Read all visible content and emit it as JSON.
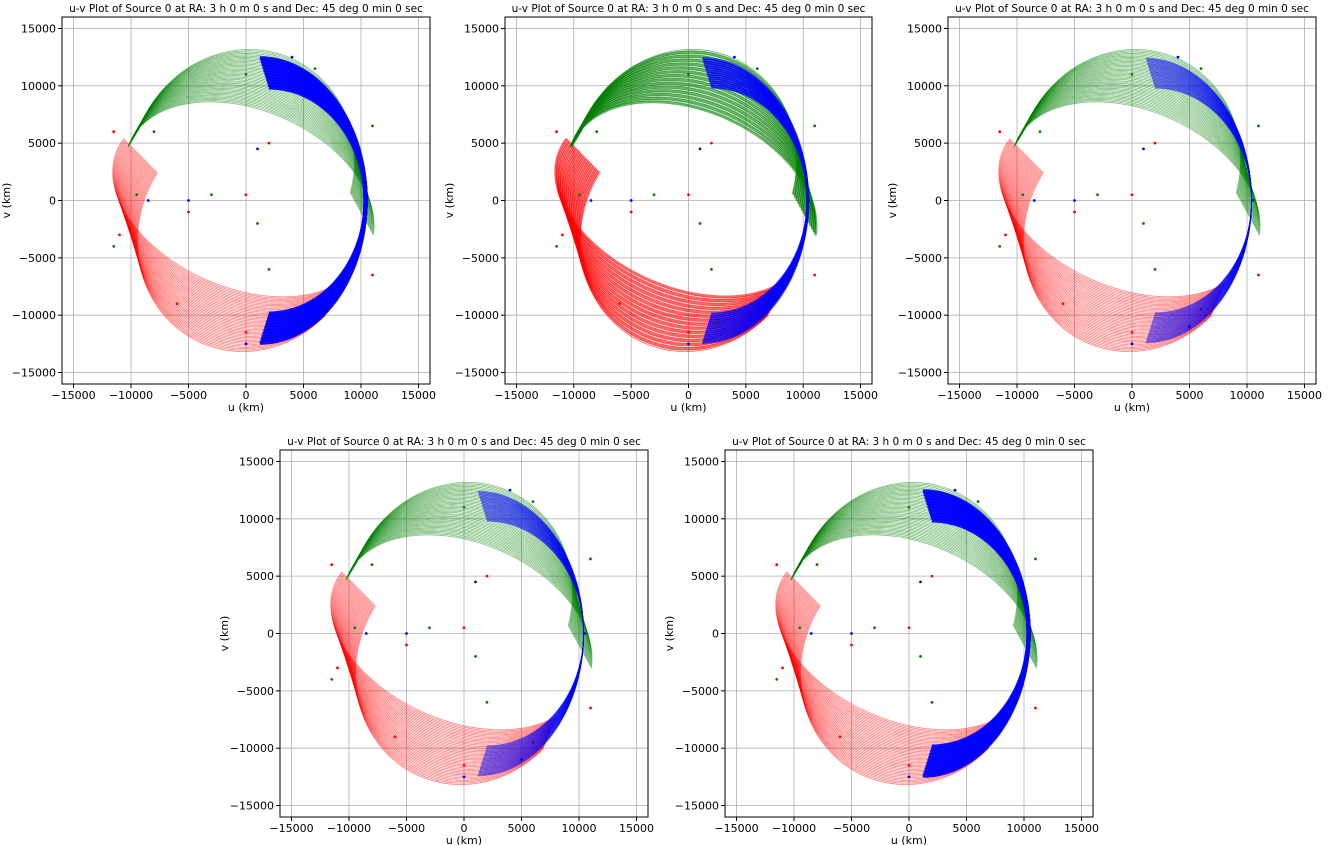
{
  "chart_data": [
    {
      "type": "scatter",
      "title": "u-v Plot of Source 0 at RA: 3 h 0 m 0 s and Dec: 45 deg 0 min 0 sec",
      "xlabel": "u (km)",
      "ylabel": "v (km)",
      "xlim": [
        -16000,
        16000
      ],
      "ylim": [
        -16000,
        16000
      ],
      "xticks": [
        -15000,
        -10000,
        -5000,
        0,
        5000,
        10000,
        15000
      ],
      "yticks": [
        -15000,
        -10000,
        -5000,
        0,
        5000,
        10000,
        15000
      ],
      "xtick_labels": [
        "−15000",
        "−10000",
        "−5000",
        "0",
        "5000",
        "10000",
        "15000"
      ],
      "ytick_labels": [
        "−15000",
        "−10000",
        "−5000",
        "0",
        "5000",
        "10000",
        "15000"
      ],
      "grid": true,
      "series_colors": [
        "#ff0000",
        "#008000",
        "#0000ff"
      ],
      "pattern": "blue-bands",
      "series": [
        {
          "color": "#ff0000",
          "values": [
            [
              -11000,
              -3000
            ],
            [
              -6000,
              -9000
            ],
            [
              0,
              -11500
            ],
            [
              6000,
              -9500
            ],
            [
              11000,
              -6500
            ],
            [
              -11500,
              6000
            ],
            [
              -5000,
              -1000
            ],
            [
              0,
              500
            ],
            [
              2000,
              5000
            ]
          ]
        },
        {
          "color": "#008000",
          "values": [
            [
              -11500,
              -4000
            ],
            [
              -8000,
              6000
            ],
            [
              0,
              11000
            ],
            [
              6000,
              11500
            ],
            [
              11000,
              6500
            ],
            [
              -9500,
              500
            ],
            [
              -3000,
              500
            ],
            [
              1000,
              -2000
            ],
            [
              2000,
              -6000
            ]
          ]
        },
        {
          "color": "#0000ff",
          "values": [
            [
              0,
              -12500
            ],
            [
              5000,
              -11000
            ],
            [
              9000,
              -6000
            ],
            [
              10500,
              0
            ],
            [
              9000,
              6000
            ],
            [
              4000,
              12500
            ],
            [
              1000,
              4500
            ],
            [
              -5000,
              0
            ],
            [
              -8500,
              0
            ]
          ]
        }
      ]
    },
    {
      "type": "scatter",
      "title": "u-v Plot of Source 0 at RA: 3 h 0 m 0 s and Dec: 45 deg 0 min 0 sec",
      "xlabel": "u (km)",
      "ylabel": "v (km)",
      "xlim": [
        -16000,
        16000
      ],
      "ylim": [
        -16000,
        16000
      ],
      "xticks": [
        -15000,
        -10000,
        -5000,
        0,
        5000,
        10000,
        15000
      ],
      "yticks": [
        -15000,
        -10000,
        -5000,
        0,
        5000,
        10000,
        15000
      ],
      "xtick_labels": [
        "−15000",
        "−10000",
        "−5000",
        "0",
        "5000",
        "10000",
        "15000"
      ],
      "ytick_labels": [
        "−15000",
        "−10000",
        "−5000",
        "0",
        "5000",
        "10000",
        "15000"
      ],
      "grid": true,
      "series_colors": [
        "#ff0000",
        "#008000",
        "#0000ff"
      ],
      "pattern": "all-bands",
      "series": [
        {
          "color": "#ff0000",
          "values": [
            [
              -11000,
              -3000
            ],
            [
              -6000,
              -9000
            ],
            [
              0,
              -11500
            ],
            [
              6000,
              -9500
            ],
            [
              11000,
              -6500
            ],
            [
              -11500,
              6000
            ],
            [
              -5000,
              -1000
            ],
            [
              0,
              500
            ],
            [
              2000,
              5000
            ]
          ]
        },
        {
          "color": "#008000",
          "values": [
            [
              -11500,
              -4000
            ],
            [
              -8000,
              6000
            ],
            [
              0,
              11000
            ],
            [
              6000,
              11500
            ],
            [
              11000,
              6500
            ],
            [
              -9500,
              500
            ],
            [
              -3000,
              500
            ],
            [
              1000,
              -2000
            ],
            [
              2000,
              -6000
            ]
          ]
        },
        {
          "color": "#0000ff",
          "values": [
            [
              0,
              -12500
            ],
            [
              5000,
              -11000
            ],
            [
              9000,
              -6000
            ],
            [
              10500,
              0
            ],
            [
              9000,
              6000
            ],
            [
              4000,
              12500
            ],
            [
              1000,
              4500
            ],
            [
              -5000,
              0
            ],
            [
              -8500,
              0
            ]
          ]
        }
      ]
    },
    {
      "type": "scatter",
      "title": "u-v Plot of Source 0 at RA: 3 h 0 m 0 s and Dec: 45 deg 0 min 0 sec",
      "xlabel": "u (km)",
      "ylabel": "v (km)",
      "xlim": [
        -16000,
        16000
      ],
      "ylim": [
        -16000,
        16000
      ],
      "xticks": [
        -15000,
        -10000,
        -5000,
        0,
        5000,
        10000,
        15000
      ],
      "yticks": [
        -15000,
        -10000,
        -5000,
        0,
        5000,
        10000,
        15000
      ],
      "xtick_labels": [
        "−15000",
        "−10000",
        "−5000",
        "0",
        "5000",
        "10000",
        "15000"
      ],
      "ytick_labels": [
        "−15000",
        "−10000",
        "−5000",
        "0",
        "5000",
        "10000",
        "15000"
      ],
      "grid": true,
      "series_colors": [
        "#ff0000",
        "#008000",
        "#0000ff"
      ],
      "pattern": "all-dense",
      "series": [
        {
          "color": "#ff0000",
          "values": [
            [
              -11000,
              -3000
            ],
            [
              -6000,
              -9000
            ],
            [
              0,
              -11500
            ],
            [
              6000,
              -9500
            ],
            [
              11000,
              -6500
            ],
            [
              -11500,
              6000
            ],
            [
              -5000,
              -1000
            ],
            [
              0,
              500
            ],
            [
              2000,
              5000
            ]
          ]
        },
        {
          "color": "#008000",
          "values": [
            [
              -11500,
              -4000
            ],
            [
              -8000,
              6000
            ],
            [
              0,
              11000
            ],
            [
              6000,
              11500
            ],
            [
              11000,
              6500
            ],
            [
              -9500,
              500
            ],
            [
              -3000,
              500
            ],
            [
              1000,
              -2000
            ],
            [
              2000,
              -6000
            ]
          ]
        },
        {
          "color": "#0000ff",
          "values": [
            [
              0,
              -12500
            ],
            [
              5000,
              -11000
            ],
            [
              9000,
              -6000
            ],
            [
              10500,
              0
            ],
            [
              9000,
              6000
            ],
            [
              4000,
              12500
            ],
            [
              1000,
              4500
            ],
            [
              -5000,
              0
            ],
            [
              -8500,
              0
            ]
          ]
        }
      ]
    },
    {
      "type": "scatter",
      "title": "u-v Plot of Source 0 at RA: 3 h 0 m 0 s and Dec: 45 deg 0 min 0 sec",
      "xlabel": "u (km)",
      "ylabel": "v (km)",
      "xlim": [
        -16000,
        16000
      ],
      "ylim": [
        -16000,
        16000
      ],
      "xticks": [
        -15000,
        -10000,
        -5000,
        0,
        5000,
        10000,
        15000
      ],
      "yticks": [
        -15000,
        -10000,
        -5000,
        0,
        5000,
        10000,
        15000
      ],
      "xtick_labels": [
        "−15000",
        "−10000",
        "−5000",
        "0",
        "5000",
        "10000",
        "15000"
      ],
      "ytick_labels": [
        "−15000",
        "−10000",
        "−5000",
        "0",
        "5000",
        "10000",
        "15000"
      ],
      "grid": true,
      "series_colors": [
        "#ff0000",
        "#008000",
        "#0000ff"
      ],
      "pattern": "all-dense",
      "series": [
        {
          "color": "#ff0000",
          "values": [
            [
              -11000,
              -3000
            ],
            [
              -6000,
              -9000
            ],
            [
              0,
              -11500
            ],
            [
              6000,
              -9500
            ],
            [
              11000,
              -6500
            ],
            [
              -11500,
              6000
            ],
            [
              -5000,
              -1000
            ],
            [
              0,
              500
            ],
            [
              2000,
              5000
            ]
          ]
        },
        {
          "color": "#008000",
          "values": [
            [
              -11500,
              -4000
            ],
            [
              -8000,
              6000
            ],
            [
              0,
              11000
            ],
            [
              6000,
              11500
            ],
            [
              11000,
              6500
            ],
            [
              -9500,
              500
            ],
            [
              -3000,
              500
            ],
            [
              1000,
              -2000
            ],
            [
              2000,
              -6000
            ]
          ]
        },
        {
          "color": "#0000ff",
          "values": [
            [
              0,
              -12500
            ],
            [
              5000,
              -11000
            ],
            [
              9000,
              -6000
            ],
            [
              10500,
              0
            ],
            [
              9000,
              6000
            ],
            [
              4000,
              12500
            ],
            [
              1000,
              4500
            ],
            [
              -5000,
              0
            ],
            [
              -8500,
              0
            ]
          ]
        }
      ]
    },
    {
      "type": "scatter",
      "title": "u-v Plot of Source 0 at RA: 3 h 0 m 0 s and Dec: 45 deg 0 min 0 sec",
      "xlabel": "u (km)",
      "ylabel": "v (km)",
      "xlim": [
        -16000,
        16000
      ],
      "ylim": [
        -16000,
        16000
      ],
      "xticks": [
        -15000,
        -10000,
        -5000,
        0,
        5000,
        10000,
        15000
      ],
      "yticks": [
        -15000,
        -10000,
        -5000,
        0,
        5000,
        10000,
        15000
      ],
      "xtick_labels": [
        "−15000",
        "−10000",
        "−5000",
        "0",
        "5000",
        "10000",
        "15000"
      ],
      "ytick_labels": [
        "−15000",
        "−10000",
        "−5000",
        "0",
        "5000",
        "10000",
        "15000"
      ],
      "grid": true,
      "series_colors": [
        "#ff0000",
        "#008000",
        "#0000ff"
      ],
      "pattern": "blue-bands",
      "series": [
        {
          "color": "#ff0000",
          "values": [
            [
              -11000,
              -3000
            ],
            [
              -6000,
              -9000
            ],
            [
              0,
              -11500
            ],
            [
              6000,
              -9500
            ],
            [
              11000,
              -6500
            ],
            [
              -11500,
              6000
            ],
            [
              -5000,
              -1000
            ],
            [
              0,
              500
            ],
            [
              2000,
              5000
            ]
          ]
        },
        {
          "color": "#008000",
          "values": [
            [
              -11500,
              -4000
            ],
            [
              -8000,
              6000
            ],
            [
              0,
              11000
            ],
            [
              6000,
              11500
            ],
            [
              11000,
              6500
            ],
            [
              -9500,
              500
            ],
            [
              -3000,
              500
            ],
            [
              1000,
              -2000
            ],
            [
              2000,
              -6000
            ]
          ]
        },
        {
          "color": "#0000ff",
          "values": [
            [
              0,
              -12500
            ],
            [
              5000,
              -11000
            ],
            [
              9000,
              -6000
            ],
            [
              10500,
              0
            ],
            [
              9000,
              6000
            ],
            [
              4000,
              12500
            ],
            [
              1000,
              4500
            ],
            [
              -5000,
              0
            ],
            [
              -8500,
              0
            ]
          ]
        }
      ]
    }
  ]
}
